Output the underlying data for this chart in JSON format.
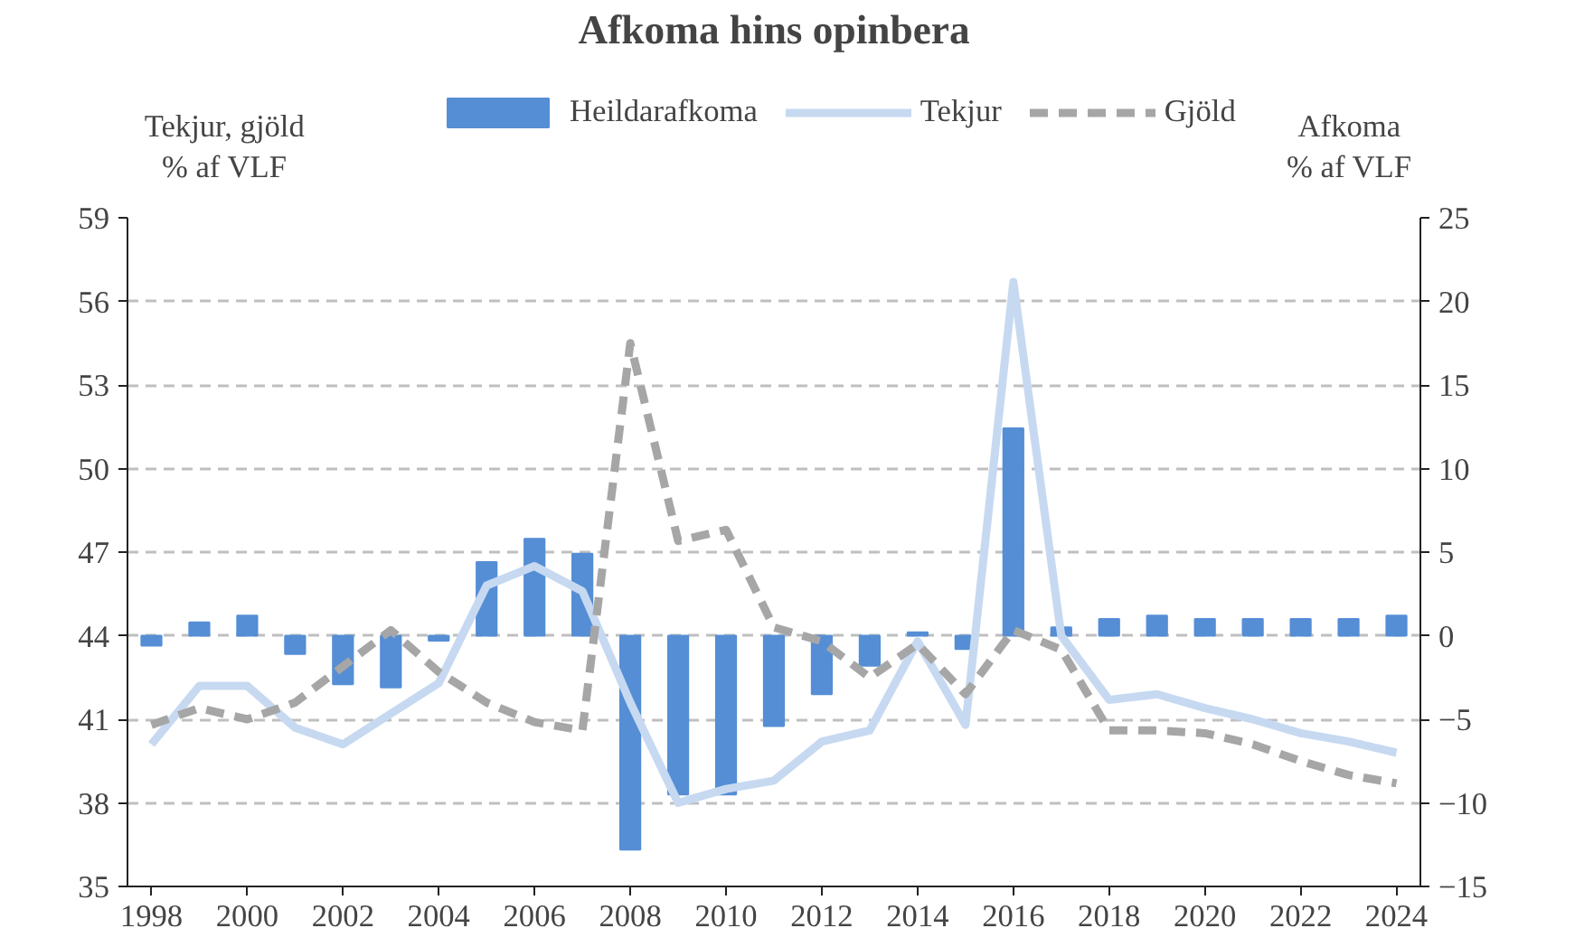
{
  "chart_data": {
    "type": "line",
    "title": "Afkoma hins opinbera",
    "ylabel": "Tekjur, gjöld\n% af VLF",
    "y2label": "Afkoma\n% af VLF",
    "x": [
      1998,
      1999,
      2000,
      2001,
      2002,
      2003,
      2004,
      2005,
      2006,
      2007,
      2008,
      2009,
      2010,
      2011,
      2012,
      2013,
      2014,
      2015,
      2016,
      2017,
      2018,
      2019,
      2020,
      2021,
      2022,
      2023,
      2024
    ],
    "xlim": [
      1997.5,
      2024.5
    ],
    "xticks": [
      1998,
      2000,
      2002,
      2004,
      2006,
      2008,
      2010,
      2012,
      2014,
      2016,
      2018,
      2020,
      2022,
      2024
    ],
    "ylim": [
      35,
      59
    ],
    "yticks": [
      35,
      38,
      41,
      44,
      47,
      50,
      53,
      56,
      59
    ],
    "y2lim": [
      -15,
      25
    ],
    "y2ticks": [
      -15,
      -10,
      -5,
      0,
      5,
      10,
      15,
      20,
      25
    ],
    "grid": "y",
    "legend": "top",
    "series": [
      {
        "name": "Heildarafkoma",
        "type": "bar",
        "axis": "y2",
        "color": "#558ed5",
        "values": [
          -0.6,
          0.8,
          1.2,
          -1.1,
          -2.9,
          -3.1,
          -0.3,
          4.4,
          5.8,
          4.9,
          -12.8,
          -9.5,
          -9.5,
          -5.4,
          -3.5,
          -1.8,
          0.2,
          -0.8,
          12.4,
          0.5,
          1.0,
          1.2,
          1.0,
          1.0,
          1.0,
          1.0,
          1.2
        ]
      },
      {
        "name": "Tekjur",
        "color": "#c6d9f1",
        "line_style": "solid",
        "values": [
          40.1,
          42.2,
          42.2,
          40.7,
          40.1,
          41.2,
          42.3,
          45.8,
          46.5,
          45.6,
          41.6,
          38.0,
          38.5,
          38.8,
          40.2,
          40.6,
          43.8,
          40.8,
          56.7,
          44.0,
          41.7,
          41.9,
          41.4,
          41.0,
          40.5,
          40.2,
          39.8
        ]
      },
      {
        "name": "Gjöld",
        "color": "#a6a6a6",
        "line_style": "dashed",
        "values": [
          40.8,
          41.4,
          41.0,
          41.6,
          42.9,
          44.2,
          42.7,
          41.6,
          40.9,
          40.6,
          54.5,
          47.4,
          47.8,
          44.3,
          43.8,
          42.5,
          43.7,
          41.9,
          44.2,
          43.5,
          40.6,
          40.6,
          40.5,
          40.1,
          39.5,
          39.0,
          38.7
        ]
      }
    ]
  }
}
